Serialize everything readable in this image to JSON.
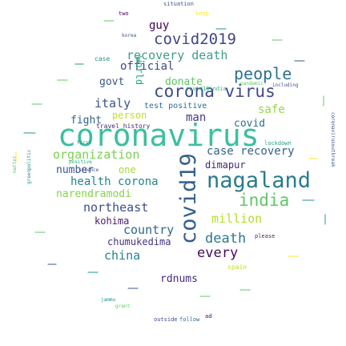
{
  "cloud": {
    "palette": [
      "#440154",
      "#3b528b",
      "#21918c",
      "#5ec962",
      "#fde725"
    ],
    "background": "#ffffff",
    "words": [
      {
        "text": "coronavirus",
        "c": "#3bbfa0"
      },
      {
        "text": "nagaland",
        "c": "#2a7b8e"
      },
      {
        "text": "covid19",
        "c": "#35608d"
      },
      {
        "text": "corona virus",
        "c": "#3e4a89"
      },
      {
        "text": "covid2019",
        "c": "#414487"
      },
      {
        "text": "india",
        "c": "#5ec962"
      },
      {
        "text": "people",
        "c": "#2c728e"
      },
      {
        "text": "case recovery",
        "c": "#33638d"
      },
      {
        "text": "recovery death",
        "c": "#3f9d8a"
      },
      {
        "text": "northeast",
        "c": "#3e4c8a"
      },
      {
        "text": "organization",
        "c": "#7ad151"
      },
      {
        "text": "death",
        "c": "#2a788e"
      },
      {
        "text": "country",
        "c": "#31688e"
      },
      {
        "text": "health corona",
        "c": "#25848e"
      },
      {
        "text": "china",
        "c": "#26828e"
      },
      {
        "text": "every",
        "c": "#460a5d"
      },
      {
        "text": "million",
        "c": "#b5de2b"
      },
      {
        "text": "italy",
        "c": "#3a548c"
      },
      {
        "text": "official",
        "c": "#3f4788"
      },
      {
        "text": "narendramodi",
        "c": "#84d44b"
      },
      {
        "text": "dimapur",
        "c": "#482576"
      },
      {
        "text": "guy",
        "c": "#440154"
      },
      {
        "text": "man",
        "c": "#443983"
      },
      {
        "text": "fight",
        "c": "#34618d"
      },
      {
        "text": "kohima",
        "c": "#481a6c"
      },
      {
        "text": "chumukedima",
        "c": "#45337d"
      },
      {
        "text": "rdnums",
        "c": "#472c7a"
      },
      {
        "text": "govt",
        "c": "#39568c"
      },
      {
        "text": "donate",
        "c": "#5cc863"
      },
      {
        "text": "safe",
        "c": "#95d840"
      },
      {
        "text": "covid",
        "c": "#2d708e"
      },
      {
        "text": "number",
        "c": "#38588c"
      },
      {
        "text": "one",
        "c": "#a5db36"
      },
      {
        "text": "test positive",
        "c": "#2e6e8e"
      },
      {
        "text": "person",
        "c": "#c2df23"
      },
      {
        "text": "world",
        "c": "#22a884"
      },
      {
        "text": "covid19india",
        "c": "#31b57b"
      },
      {
        "text": "case",
        "c": "#21918c"
      },
      {
        "text": "situation",
        "c": "#3b528b"
      },
      {
        "text": "two",
        "c": "#440154"
      },
      {
        "text": "keep",
        "c": "#fde725"
      },
      {
        "text": "korea",
        "c": "#3b528b"
      },
      {
        "text": "travel history",
        "c": "#482878"
      },
      {
        "text": "outside",
        "c": "#3e4989"
      },
      {
        "text": "follow",
        "c": "#31688e"
      },
      {
        "text": "matter",
        "c": "#5ec962"
      },
      {
        "text": "greenpolitic",
        "c": "#21918c"
      },
      {
        "text": "coronavirusoutbreak",
        "c": "#3b528b"
      },
      {
        "text": "spain",
        "c": "#bddf26"
      },
      {
        "text": "please",
        "c": "#481f70"
      },
      {
        "text": "lockdown",
        "c": "#1fa187"
      },
      {
        "text": "positive",
        "c": "#22a884"
      },
      {
        "text": "science",
        "c": "#3b528b"
      },
      {
        "text": "first",
        "c": "#21918c"
      },
      {
        "text": "ad",
        "c": "#440154"
      },
      {
        "text": "pandemic",
        "c": "#5ec962"
      },
      {
        "text": "including",
        "c": "#3b528b"
      },
      {
        "text": "jammu",
        "c": "#21918c"
      },
      {
        "text": "grant",
        "c": "#5ec962"
      }
    ]
  }
}
